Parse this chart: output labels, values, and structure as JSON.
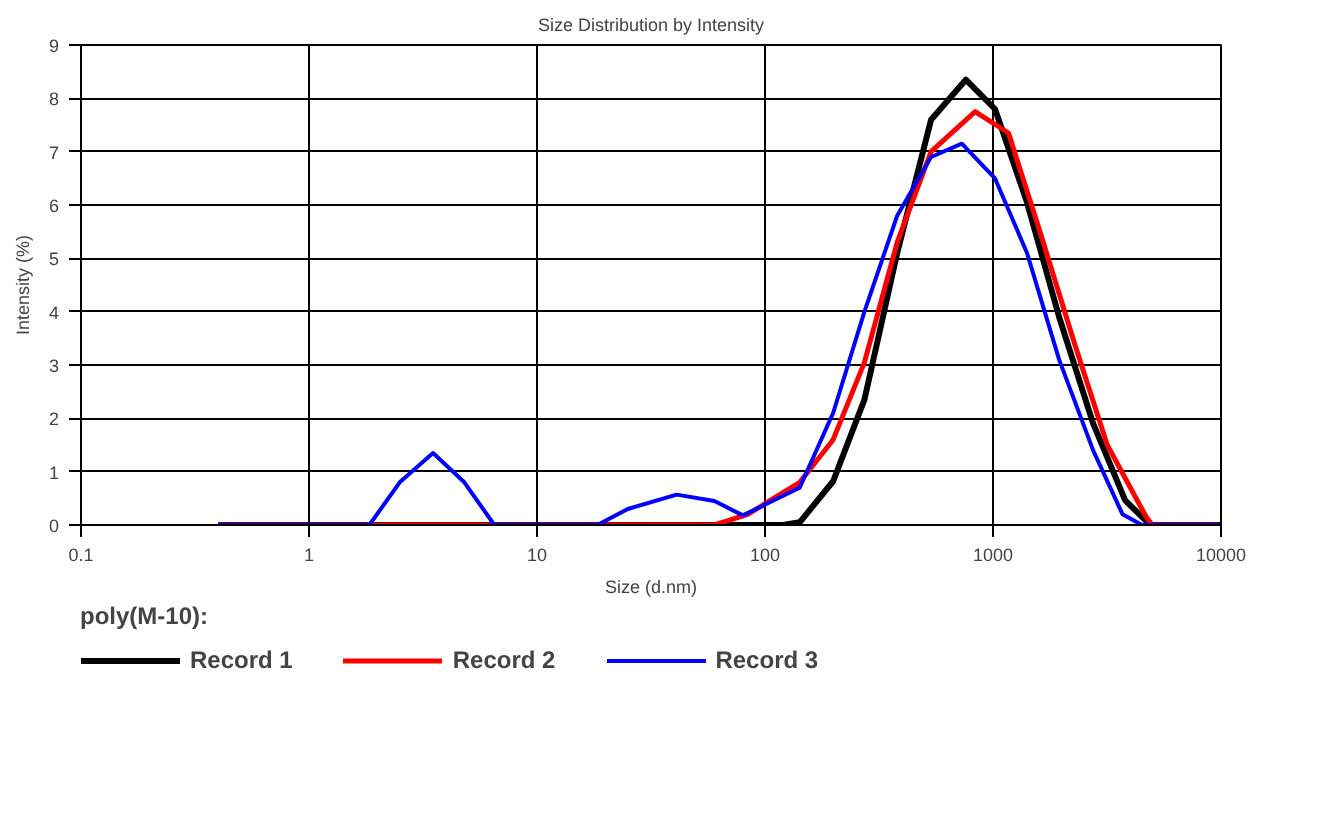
{
  "chart_data": {
    "type": "line",
    "title": "Size Distribution by Intensity",
    "xlabel": "Size (d.nm)",
    "ylabel": "Intensity (%)",
    "log": "x",
    "grid": true,
    "legend": "bottom",
    "legend_title": "poly(M-10):",
    "line_style": "solid",
    "marker": "none",
    "xlim": [
      0.1,
      10000
    ],
    "xticks": [
      0.1,
      1,
      10,
      100,
      1000,
      10000
    ],
    "ylim": [
      0,
      9
    ],
    "yticks": [
      0,
      1,
      2,
      3,
      4,
      5,
      6,
      7,
      8,
      9
    ],
    "series": [
      {
        "name": "Record 1",
        "color": "#000000",
        "x": [
          0.4,
          120,
          142,
          199,
          273,
          380,
          535,
          760,
          1020,
          1410,
          1950,
          2750,
          3800,
          4900,
          10000
        ],
        "values": [
          0,
          0,
          0.05,
          0.82,
          2.35,
          5.1,
          7.6,
          8.35,
          7.8,
          6.05,
          3.9,
          1.9,
          0.46,
          0,
          0
        ]
      },
      {
        "name": "Record 2",
        "color": "#ff0000",
        "x": [
          0.4,
          60,
          84,
          142,
          199,
          273,
          380,
          535,
          835,
          1170,
          1620,
          2280,
          3170,
          4700,
          5000,
          10000
        ],
        "values": [
          0,
          0,
          0.2,
          0.8,
          1.6,
          3.05,
          5.3,
          7.0,
          7.75,
          7.35,
          5.45,
          3.4,
          1.5,
          0.15,
          0,
          0
        ]
      },
      {
        "name": "Record 3",
        "color": "#0000ff",
        "x": [
          0.4,
          1.84,
          2.5,
          3.5,
          4.8,
          6.5,
          18.4,
          25,
          41,
          60,
          80,
          142,
          199,
          273,
          380,
          535,
          730,
          1020,
          1410,
          1950,
          2750,
          3700,
          4500,
          10000
        ],
        "values": [
          0,
          0,
          0.8,
          1.35,
          0.8,
          0,
          0,
          0.3,
          0.57,
          0.45,
          0.18,
          0.7,
          2.1,
          4.0,
          5.8,
          6.9,
          7.15,
          6.5,
          5.1,
          3.1,
          1.4,
          0.2,
          0,
          0
        ]
      }
    ]
  }
}
